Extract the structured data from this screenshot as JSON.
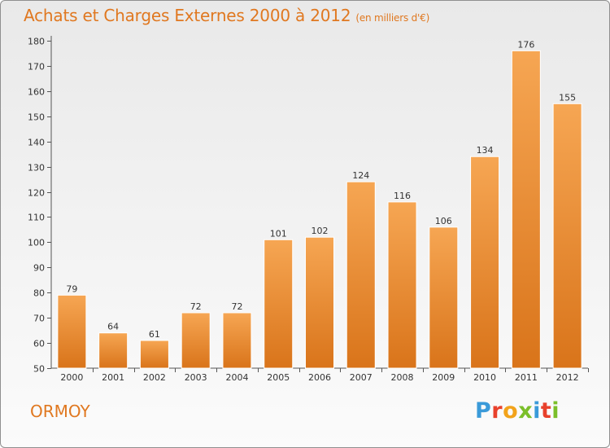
{
  "header": {
    "title": "Achats et Charges Externes 2000 à 2012",
    "subtitle": "(en milliers d'€)"
  },
  "footer": {
    "city": "ORMOY",
    "logo_letters": [
      "P",
      "r",
      "o",
      "x",
      "i",
      "t",
      "i"
    ],
    "logo_colors": [
      "#3a9ad9",
      "#e8412c",
      "#f2a31b",
      "#7bbf2a",
      "#3a9ad9",
      "#e8412c",
      "#7bbf2a"
    ]
  },
  "colors": {
    "accent": "#e07820",
    "bar_top": "#f6a653",
    "bar_bottom": "#d9741a"
  },
  "chart_data": {
    "type": "bar",
    "title": "Achats et Charges Externes 2000 à 2012",
    "subtitle": "(en milliers d'€)",
    "categories": [
      "2000",
      "2001",
      "2002",
      "2003",
      "2004",
      "2005",
      "2006",
      "2007",
      "2008",
      "2009",
      "2010",
      "2011",
      "2012"
    ],
    "values": [
      79,
      64,
      61,
      72,
      72,
      101,
      102,
      124,
      116,
      106,
      134,
      176,
      155
    ],
    "ylim": [
      50,
      180
    ],
    "yticks": [
      50,
      60,
      70,
      80,
      90,
      100,
      110,
      120,
      130,
      140,
      150,
      160,
      170,
      180
    ],
    "grid": false,
    "legend": "none"
  }
}
